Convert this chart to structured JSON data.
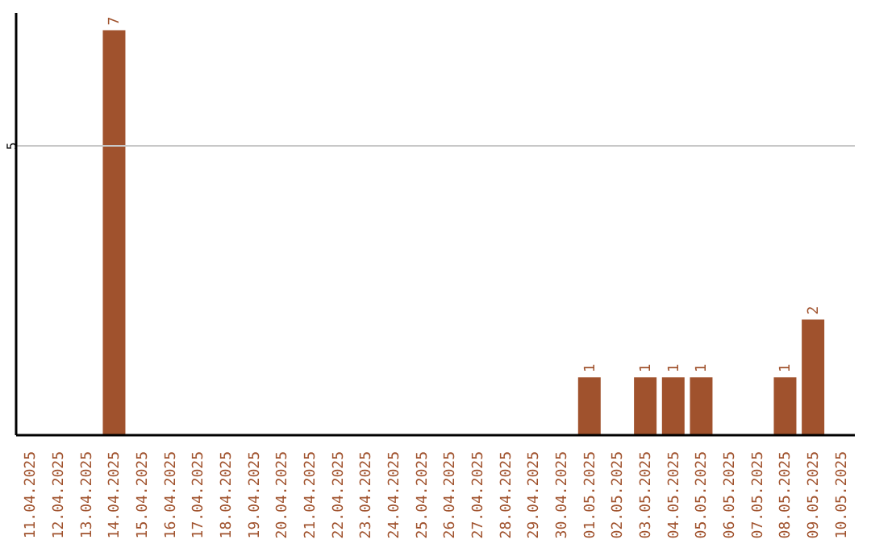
{
  "chart_data": {
    "type": "bar",
    "categories": [
      "11.04.2025",
      "12.04.2025",
      "13.04.2025",
      "14.04.2025",
      "15.04.2025",
      "16.04.2025",
      "17.04.2025",
      "18.04.2025",
      "19.04.2025",
      "20.04.2025",
      "21.04.2025",
      "22.04.2025",
      "23.04.2025",
      "24.04.2025",
      "25.04.2025",
      "26.04.2025",
      "27.04.2025",
      "28.04.2025",
      "29.04.2025",
      "30.04.2025",
      "01.05.2025",
      "02.05.2025",
      "03.05.2025",
      "04.05.2025",
      "05.05.2025",
      "06.05.2025",
      "07.05.2025",
      "08.05.2025",
      "09.05.2025",
      "10.05.2025"
    ],
    "values": [
      0,
      0,
      0,
      7,
      0,
      0,
      0,
      0,
      0,
      0,
      0,
      0,
      0,
      0,
      0,
      0,
      0,
      0,
      0,
      0,
      1,
      0,
      1,
      1,
      1,
      0,
      0,
      1,
      2,
      0
    ],
    "value_labels": [
      null,
      null,
      null,
      "7",
      null,
      null,
      null,
      null,
      null,
      null,
      null,
      null,
      null,
      null,
      null,
      null,
      null,
      null,
      null,
      null,
      "1",
      null,
      "1",
      "1",
      "1",
      null,
      null,
      "1",
      "2",
      null
    ],
    "color": "#a0522d",
    "ylim": [
      0,
      7.3
    ],
    "yticks": [
      5
    ],
    "grid": "y"
  }
}
